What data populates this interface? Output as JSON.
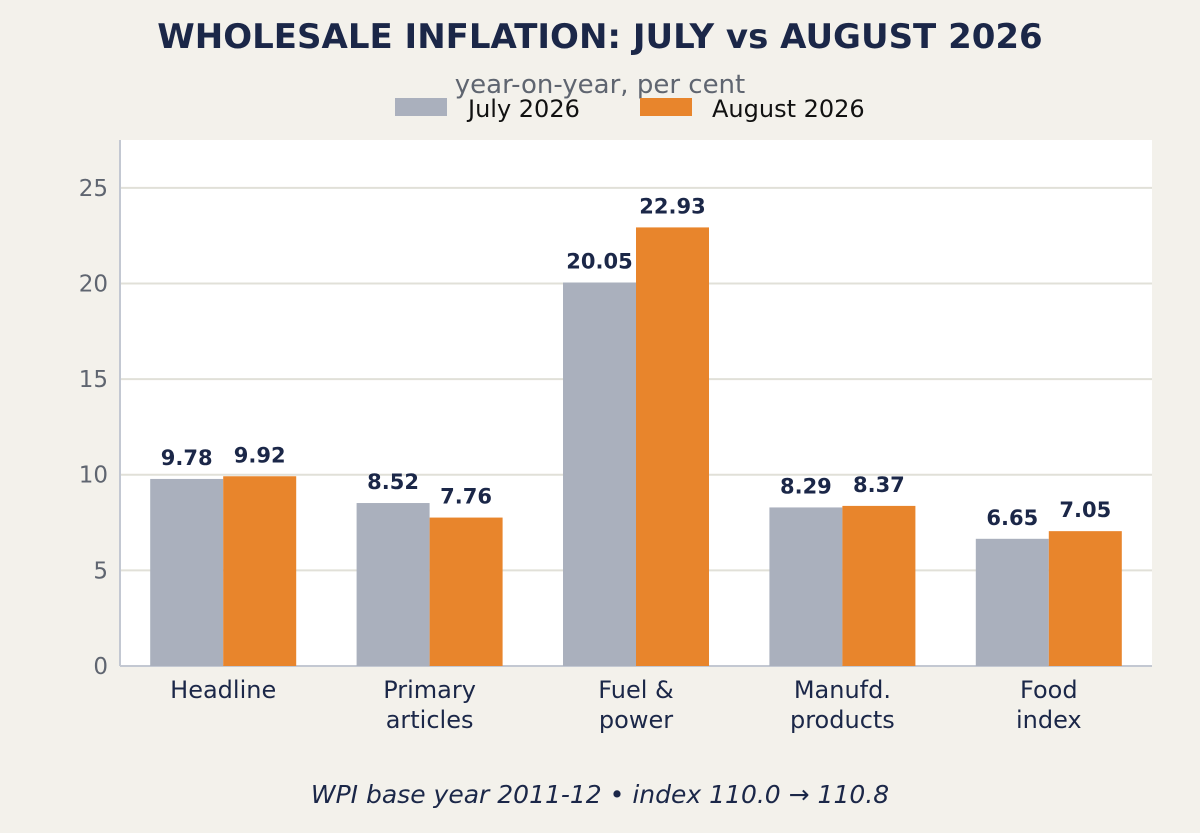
{
  "chart_data": {
    "type": "bar",
    "title": "WHOLESALE INFLATION: JULY vs AUGUST 2026",
    "subtitle": "year-on-year, per cent",
    "categories": [
      [
        "Headline"
      ],
      [
        "Primary",
        "articles"
      ],
      [
        "Fuel &",
        "power"
      ],
      [
        "Manufd.",
        "products"
      ],
      [
        "Food",
        "index"
      ]
    ],
    "series": [
      {
        "name": "July 2026",
        "color": "#aab0bd",
        "values": [
          9.78,
          8.52,
          20.05,
          8.29,
          6.65
        ],
        "labels": [
          "9.78",
          "8.52",
          "20.05",
          "8.29",
          "6.65"
        ]
      },
      {
        "name": "August 2026",
        "color": "#e8852c",
        "values": [
          9.92,
          7.76,
          22.93,
          8.37,
          7.05
        ],
        "labels": [
          "9.92",
          "7.76",
          "22.93",
          "8.37",
          "7.05"
        ]
      }
    ],
    "ylim": [
      0,
      27.5
    ],
    "yticks": [
      0,
      5,
      10,
      15,
      20,
      25
    ],
    "ytick_labels": [
      "0",
      "5",
      "10",
      "15",
      "20",
      "25"
    ],
    "grid": true,
    "legend_position": "top-center",
    "footnote": "WPI base year 2011-12  •  index 110.0 → 110.8"
  }
}
